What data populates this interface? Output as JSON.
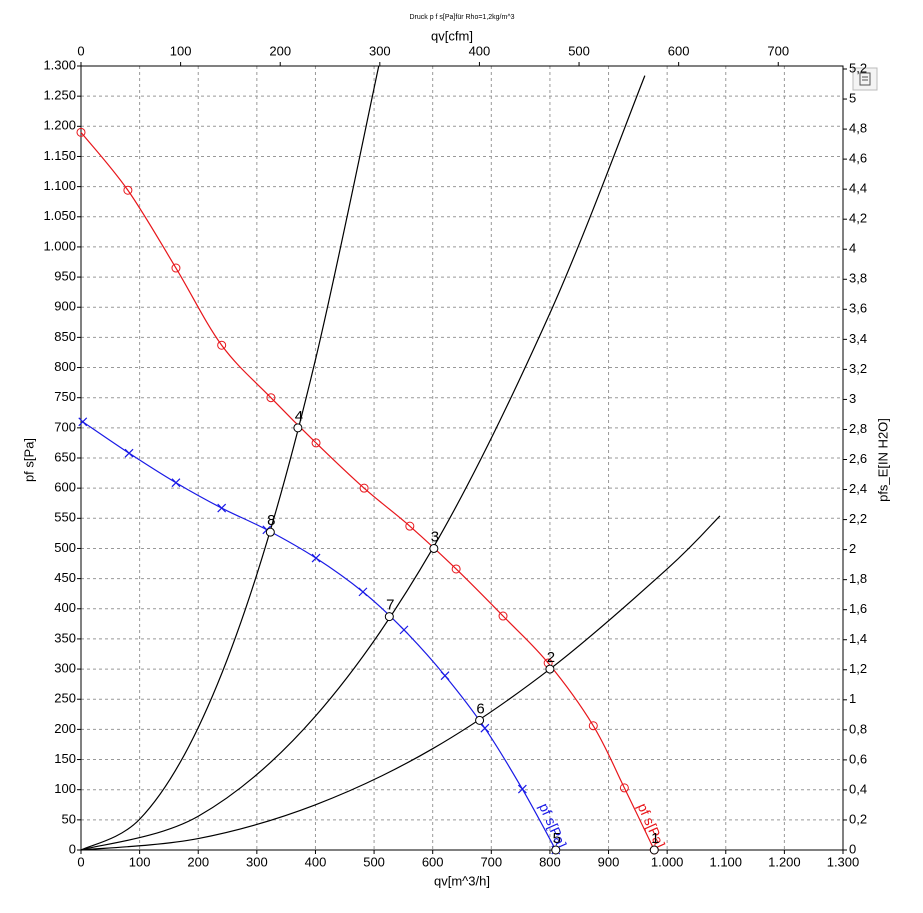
{
  "chart_data": {
    "type": "line",
    "title": "Druck p f s[Pa]für Rho=1,2kg/m^3",
    "x_label": "qv[m^3/h]",
    "x2_label": "qv[cfm]",
    "y_label": "pf s[Pa]",
    "y2_label": "pfs_E[IN H2O]",
    "grid": true,
    "xlim": [
      0,
      1300
    ],
    "xticks": [
      0,
      100,
      200,
      300,
      400,
      500,
      600,
      700,
      800,
      900,
      {
        "value": 1000,
        "label": "1.000"
      },
      {
        "value": 1100,
        "label": "1.100"
      },
      {
        "value": 1200,
        "label": "1.200"
      },
      {
        "value": 1300,
        "label": "1.300"
      }
    ],
    "x2lim": [
      0,
      765
    ],
    "x2ticks": [
      0,
      100,
      200,
      300,
      400,
      500,
      600,
      700
    ],
    "ylim": [
      0,
      1300
    ],
    "yticks": [
      0,
      50,
      100,
      150,
      200,
      250,
      300,
      350,
      400,
      450,
      500,
      550,
      600,
      650,
      700,
      750,
      800,
      850,
      900,
      950,
      {
        "value": 1000,
        "label": "1.000"
      },
      {
        "value": 1050,
        "label": "1.050"
      },
      {
        "value": 1100,
        "label": "1.100"
      },
      {
        "value": 1150,
        "label": "1.150"
      },
      {
        "value": 1200,
        "label": "1.200"
      },
      {
        "value": 1250,
        "label": "1.250"
      },
      {
        "value": 1300,
        "label": "1.300"
      }
    ],
    "y2lim": [
      0,
      5.22
    ],
    "y2ticks": [
      0,
      {
        "value": 0.2,
        "label": "0,2"
      },
      {
        "value": 0.4,
        "label": "0,4"
      },
      {
        "value": 0.6,
        "label": "0,6"
      },
      {
        "value": 0.8,
        "label": "0,8"
      },
      1,
      {
        "value": 1.2,
        "label": "1,2"
      },
      {
        "value": 1.4,
        "label": "1,4"
      },
      {
        "value": 1.6,
        "label": "1,6"
      },
      {
        "value": 1.8,
        "label": "1,8"
      },
      2,
      {
        "value": 2.2,
        "label": "2,2"
      },
      {
        "value": 2.4,
        "label": "2,4"
      },
      {
        "value": 2.6,
        "label": "2,6"
      },
      {
        "value": 2.8,
        "label": "2,8"
      },
      3,
      {
        "value": 3.2,
        "label": "3,2"
      },
      {
        "value": 3.4,
        "label": "3,4"
      },
      {
        "value": 3.6,
        "label": "3,6"
      },
      {
        "value": 3.8,
        "label": "3,8"
      },
      4,
      {
        "value": 4.2,
        "label": "4,2"
      },
      {
        "value": 4.4,
        "label": "4,4"
      },
      {
        "value": 4.6,
        "label": "4,6"
      },
      {
        "value": 4.8,
        "label": "4,8"
      },
      5,
      {
        "value": 5.2,
        "label": "5,2"
      }
    ],
    "series": [
      {
        "name": "pf s[Pa]",
        "color": "#e8161b",
        "marker": "circle",
        "x": [
          0,
          80,
          162,
          240,
          324,
          401,
          483,
          561,
          640,
          720,
          797,
          874,
          927,
          978
        ],
        "values": [
          1190,
          1094,
          965,
          837,
          750,
          675,
          600,
          537,
          466,
          388,
          310,
          206,
          103,
          0
        ]
      },
      {
        "name": "pf s[Pa]",
        "color": "#1a1ae6",
        "marker": "cross",
        "x": [
          3,
          82,
          162,
          240,
          317,
          401,
          481,
          551,
          621,
          689,
          753,
          810
        ],
        "values": [
          710,
          658,
          609,
          567,
          531,
          484,
          428,
          365,
          289,
          202,
          101,
          0
        ]
      },
      {
        "color": "#000000",
        "marker": "none",
        "x": [
          0,
          100,
          200,
          300,
          400,
          508
        ],
        "values": [
          0,
          51,
          203,
          457,
          813,
          1300
        ]
      },
      {
        "color": "#000000",
        "marker": "none",
        "x": [
          0,
          200,
          400,
          600,
          800,
          962
        ],
        "values": [
          0,
          56,
          222,
          500,
          890,
          1284
        ]
      },
      {
        "color": "#000000",
        "marker": "none",
        "x": [
          0,
          200,
          400,
          600,
          800,
          1000,
          1090
        ],
        "values": [
          0,
          19,
          75,
          168,
          300,
          466,
          554
        ]
      }
    ],
    "points": [
      {
        "label": "1",
        "x": 978,
        "y": 0
      },
      {
        "label": "2",
        "x": 800,
        "y": 300
      },
      {
        "label": "3",
        "x": 602,
        "y": 500
      },
      {
        "label": "4",
        "x": 370,
        "y": 700
      },
      {
        "label": "5",
        "x": 810,
        "y": 0
      },
      {
        "label": "6",
        "x": 680,
        "y": 215
      },
      {
        "label": "7",
        "x": 526,
        "y": 387
      },
      {
        "label": "8",
        "x": 323,
        "y": 527
      }
    ]
  }
}
